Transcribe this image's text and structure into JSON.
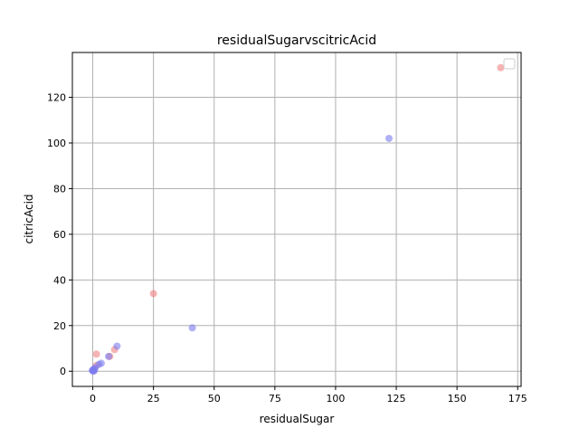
{
  "chart_data": {
    "type": "scatter",
    "title": "residualSugarvscitricAcid",
    "xlabel": "residualSugar",
    "ylabel": "citricAcid",
    "xlim": [
      -8.4,
      176.4
    ],
    "ylim": [
      -6.65,
      139.65
    ],
    "xticks": [
      0,
      25,
      50,
      75,
      100,
      125,
      150,
      175
    ],
    "yticks": [
      0,
      20,
      40,
      60,
      80,
      100,
      120
    ],
    "grid": true,
    "legend": "top-right",
    "series": [
      {
        "color": "#f08080",
        "points": [
          {
            "x": 168,
            "y": 133
          },
          {
            "x": 25,
            "y": 34
          },
          {
            "x": 9,
            "y": 9.5
          },
          {
            "x": 7,
            "y": 6.5
          },
          {
            "x": 1.5,
            "y": 7.5
          },
          {
            "x": 1.5,
            "y": 2.5
          },
          {
            "x": 0.3,
            "y": 0.5
          }
        ]
      },
      {
        "color": "#7b7bf0",
        "points": [
          {
            "x": 122,
            "y": 102
          },
          {
            "x": 41,
            "y": 19
          },
          {
            "x": 10,
            "y": 11
          },
          {
            "x": 6.5,
            "y": 6.5
          },
          {
            "x": 3.5,
            "y": 3.5
          },
          {
            "x": 2.5,
            "y": 3
          },
          {
            "x": 1,
            "y": 1.5
          },
          {
            "x": 0.5,
            "y": 1
          },
          {
            "x": 0,
            "y": 0.5
          },
          {
            "x": 0.2,
            "y": 0
          },
          {
            "x": -0.2,
            "y": 0.3
          },
          {
            "x": 0.6,
            "y": 0.2
          }
        ]
      }
    ]
  }
}
